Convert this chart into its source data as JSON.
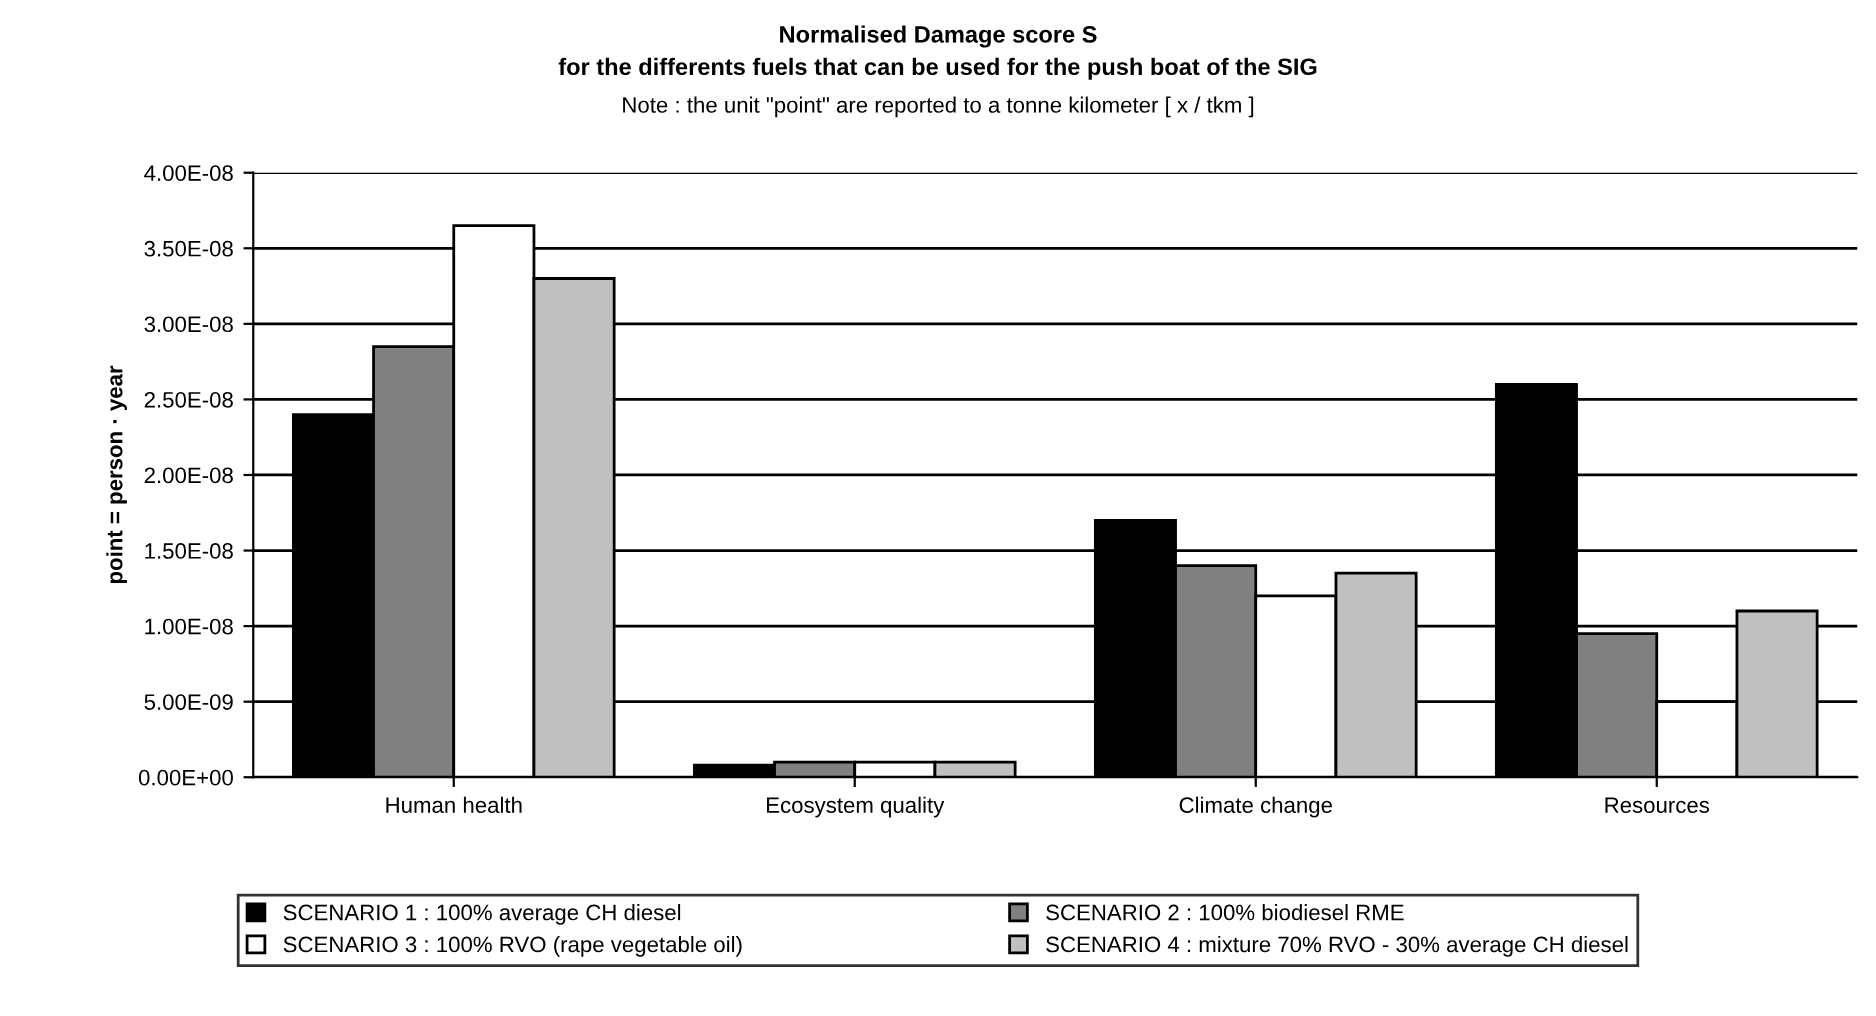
{
  "chart_data": {
    "type": "bar",
    "title": "Normalised Damage score S\nfor the differents fuels that can be used for the push boat of the SIG",
    "subtitle": "Note : the unit \"point\" are reported to a tonne kilometer [ x / tkm ]",
    "ylabel": "point = person · year",
    "categories": [
      "Human health",
      "Ecosystem quality",
      "Climate change",
      "Resources"
    ],
    "series": [
      {
        "name": "SCENARIO 1 : 100% average CH diesel",
        "color": "#000000",
        "values": [
          2.4e-08,
          8e-10,
          1.7e-08,
          2.6e-08
        ]
      },
      {
        "name": "SCENARIO 2 : 100% biodiesel RME",
        "color": "#808080",
        "values": [
          2.85e-08,
          1e-09,
          1.4e-08,
          9.5e-09
        ]
      },
      {
        "name": "SCENARIO 3 : 100% RVO (rape vegetable oil)",
        "color": "#ffffff",
        "values": [
          3.65e-08,
          1e-09,
          1.2e-08,
          5e-09
        ]
      },
      {
        "name": "SCENARIO 4 : mixture 70% RVO - 30% average CH diesel",
        "color": "#c0c0c0",
        "values": [
          3.3e-08,
          1e-09,
          1.35e-08,
          1.1e-08
        ]
      }
    ],
    "ylim": [
      0,
      4e-08
    ],
    "yticks": [
      {
        "value": 0,
        "label": "0.00E+00"
      },
      {
        "value": 5e-09,
        "label": "5.00E-09"
      },
      {
        "value": 1e-08,
        "label": "1.00E-08"
      },
      {
        "value": 1.5e-08,
        "label": "1.50E-08"
      },
      {
        "value": 2e-08,
        "label": "2.00E-08"
      },
      {
        "value": 2.5e-08,
        "label": "2.50E-08"
      },
      {
        "value": 3e-08,
        "label": "3.00E-08"
      },
      {
        "value": 3.5e-08,
        "label": "3.50E-08"
      },
      {
        "value": 4e-08,
        "label": "4.00E-08"
      }
    ],
    "grid": "y",
    "legend": "bottom"
  }
}
